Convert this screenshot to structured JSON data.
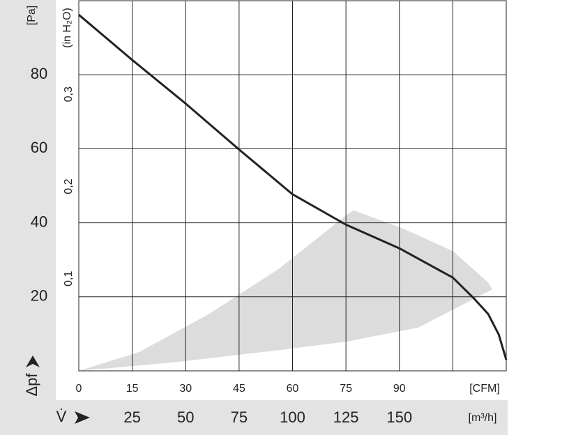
{
  "chart_data": {
    "type": "line",
    "y_unit": "[Pa]",
    "y2_unit": "(in H₂O)",
    "y_label": "Δpf",
    "x_label": "V̇",
    "x_unit": "[CFM]",
    "x2_unit": "[m³/h]",
    "xlim": [
      0,
      120
    ],
    "ylim": [
      0,
      100
    ],
    "y2lim": [
      0,
      0.4015
    ],
    "x2lim": [
      0,
      200
    ],
    "xticks": [
      0,
      15,
      30,
      45,
      60,
      75,
      90,
      {
        "value": 105,
        "label": null
      }
    ],
    "yticks": [
      20,
      40,
      60,
      80
    ],
    "y2ticks": [
      {
        "value": 0.1,
        "label": "0,1"
      },
      {
        "value": 0.2,
        "label": "0,2"
      },
      {
        "value": 0.3,
        "label": "0,3"
      }
    ],
    "x2ticks": [
      25,
      50,
      75,
      100,
      125,
      150
    ],
    "grid": true,
    "series": [
      {
        "color": "#222222",
        "x": [
          0,
          15,
          30,
          45,
          60,
          75,
          90,
          105,
          111,
          114.9,
          117.9,
          120
        ],
        "values": [
          96.2,
          84,
          72.2,
          59.8,
          47.7,
          39.5,
          33.1,
          25.2,
          19.5,
          15.4,
          9.8,
          3
        ]
      }
    ],
    "shaded_region": {
      "color": "#dcdcdc",
      "x": [
        0,
        26.8,
        56.2,
        75.2,
        95.3,
        116.1,
        114.9,
        105.1,
        91.4,
        77.1,
        75.2,
        56.2,
        36.6,
        17
      ],
      "values": [
        0,
        2.3,
        5.6,
        7.9,
        11.7,
        22,
        23.9,
        32.3,
        38.3,
        43.4,
        42.1,
        27.6,
        15.4,
        5.1
      ]
    }
  }
}
